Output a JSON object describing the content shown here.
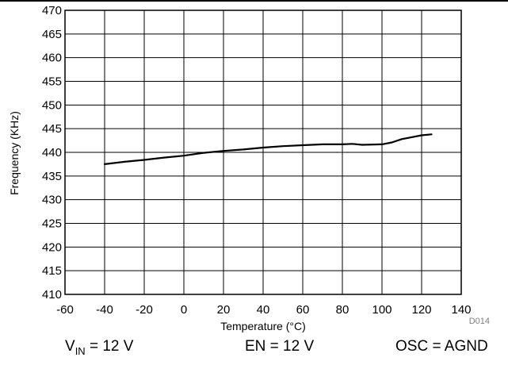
{
  "chart_data": {
    "type": "line",
    "xlabel": "Temperature (°C)",
    "ylabel": "Frequency (KHz)",
    "xlim": [
      -60,
      140
    ],
    "ylim": [
      410,
      470
    ],
    "xticks": [
      -60,
      -40,
      -20,
      0,
      20,
      40,
      60,
      80,
      100,
      120,
      140
    ],
    "yticks": [
      410,
      415,
      420,
      425,
      430,
      435,
      440,
      445,
      450,
      455,
      460,
      465,
      470
    ],
    "grid": true,
    "series": [
      {
        "color": "#000000",
        "x": [
          -40,
          -30,
          -20,
          -10,
          0,
          10,
          20,
          30,
          40,
          50,
          60,
          70,
          80,
          85,
          90,
          100,
          105,
          110,
          115,
          120,
          125
        ],
        "y": [
          437.5,
          438.0,
          438.4,
          438.9,
          439.3,
          439.9,
          440.3,
          440.6,
          441.0,
          441.3,
          441.5,
          441.7,
          441.7,
          441.8,
          441.6,
          441.7,
          442.1,
          442.8,
          443.2,
          443.6,
          443.8
        ]
      }
    ]
  },
  "figure_code": "D014",
  "conditions": {
    "vin_label": "V",
    "vin_subscript": "IN",
    "vin_value": " = 12 V",
    "en": "EN = 12 V",
    "osc": "OSC = AGND"
  }
}
